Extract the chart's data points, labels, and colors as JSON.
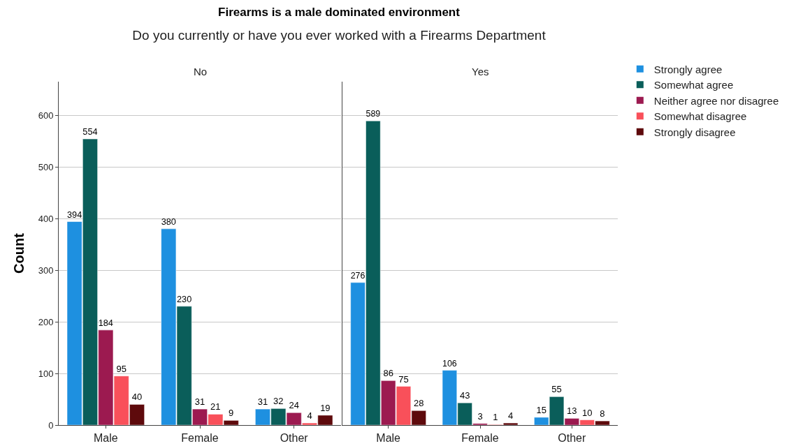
{
  "chart_data": [
    {
      "type": "bar",
      "title": "Firearms is a male dominated environment",
      "subtitle": "Do you currently or have you ever worked with a Firearms Department",
      "ylabel": "Count",
      "annotations": [
        "No"
      ],
      "categories": [
        "Male",
        "Female",
        "Other"
      ],
      "series": [
        {
          "color": "#1e90e0",
          "values": [
            394,
            380,
            31
          ]
        },
        {
          "color": "#0a5e5a",
          "values": [
            554,
            230,
            32
          ]
        },
        {
          "color": "#9c1a50",
          "values": [
            184,
            31,
            24
          ]
        },
        {
          "color": "#f9505a",
          "values": [
            95,
            21,
            4
          ]
        },
        {
          "color": "#5e0a0c",
          "values": [
            40,
            9,
            19
          ]
        }
      ],
      "ylim": [
        0,
        665
      ],
      "yticks": [
        0,
        100,
        200,
        300,
        400,
        500,
        600
      ],
      "grid": "y",
      "data_labels": true,
      "legend": false
    },
    {
      "type": "bar",
      "annotations": [
        "Yes"
      ],
      "categories": [
        "Male",
        "Female",
        "Other"
      ],
      "series": [
        {
          "name": "Strongly agree",
          "color": "#1e90e0",
          "values": [
            276,
            106,
            15
          ]
        },
        {
          "name": "Somewhat agree",
          "color": "#0a5e5a",
          "values": [
            589,
            43,
            55
          ]
        },
        {
          "name": "Neither agree nor disagree",
          "color": "#9c1a50",
          "values": [
            86,
            3,
            13
          ]
        },
        {
          "name": "Somewhat disagree",
          "color": "#f9505a",
          "values": [
            75,
            1,
            10
          ]
        },
        {
          "name": "Strongly disagree",
          "color": "#5e0a0c",
          "values": [
            28,
            4,
            8
          ]
        }
      ],
      "ylim": [
        0,
        665
      ],
      "yticks": [
        0,
        100,
        200,
        300,
        400,
        500,
        600
      ],
      "grid": "y",
      "data_labels": true,
      "legend": "top right",
      "tick_labels": "x"
    }
  ]
}
